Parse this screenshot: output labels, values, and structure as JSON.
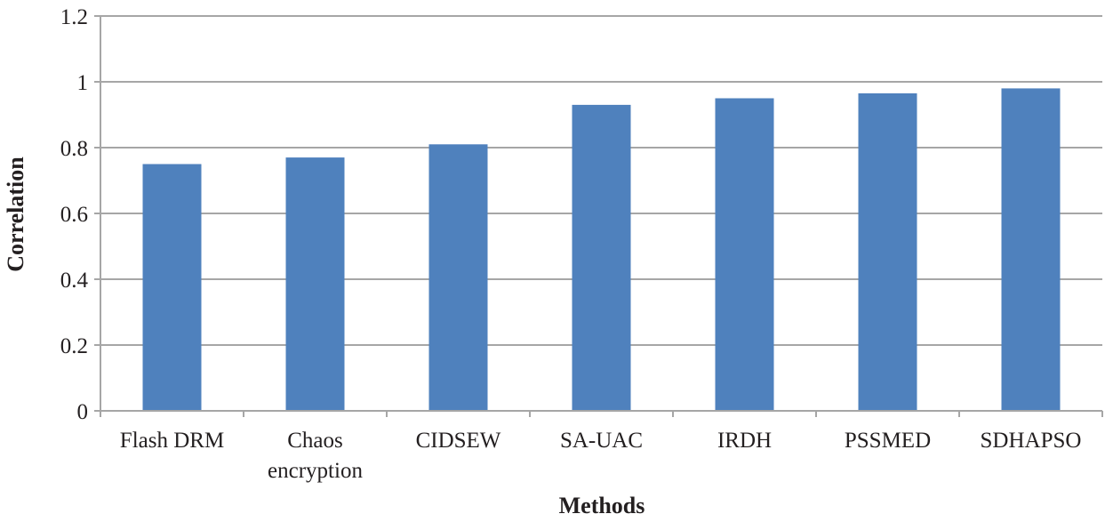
{
  "chart_data": {
    "type": "bar",
    "categories": [
      "Flash DRM",
      "Chaos encryption",
      "CIDSEW",
      "SA-UAC",
      "IRDH",
      "PSSMED",
      "SDHAPSO"
    ],
    "category_lines": [
      [
        "Flash DRM"
      ],
      [
        "Chaos",
        "encryption"
      ],
      [
        "CIDSEW"
      ],
      [
        "SA-UAC"
      ],
      [
        "IRDH"
      ],
      [
        "PSSMED"
      ],
      [
        "SDHAPSO"
      ]
    ],
    "values": [
      0.75,
      0.77,
      0.81,
      0.93,
      0.95,
      0.965,
      0.98
    ],
    "xlabel": "Methods",
    "ylabel": "Correlation",
    "ylim": [
      0,
      1.2
    ],
    "yticks": [
      0,
      0.2,
      0.4,
      0.6,
      0.8,
      1,
      1.2
    ],
    "ytick_labels": [
      "0",
      "0.2",
      "0.4",
      "0.6",
      "0.8",
      "1",
      "1.2"
    ],
    "grid": true,
    "legend": "none",
    "bar_color": "#4f81bd"
  }
}
